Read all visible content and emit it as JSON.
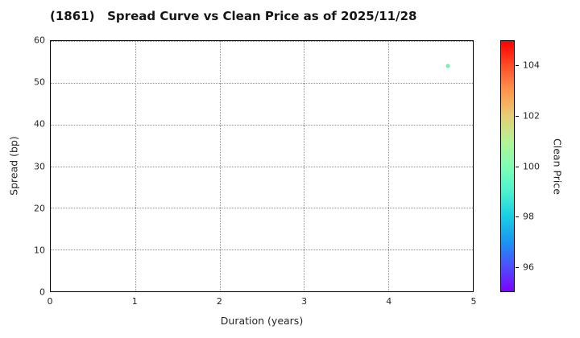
{
  "title": "(1861)   Spread Curve vs Clean Price as of 2025/11/28",
  "chart_data": {
    "type": "scatter",
    "title": "(1861)   Spread Curve vs Clean Price as of 2025/11/28",
    "xlabel": "Duration (years)",
    "ylabel": "Spread (bp)",
    "xlim": [
      0,
      5
    ],
    "ylim": [
      0,
      60
    ],
    "x_ticks": [
      0,
      1,
      2,
      3,
      4,
      5
    ],
    "y_ticks": [
      0,
      10,
      20,
      30,
      40,
      50,
      60
    ],
    "x_grid": [
      1,
      2,
      3,
      4
    ],
    "y_grid": [
      10,
      20,
      30,
      40,
      50,
      60
    ],
    "grid_style": "dotted",
    "legend": "none",
    "points": [
      {
        "x": 4.7,
        "y": 54,
        "clean_price": 100.3,
        "color": "#72F1A6"
      }
    ],
    "colorbar": {
      "label": "Clean Price",
      "min": 95,
      "max": 105,
      "ticks": [
        96,
        98,
        100,
        102,
        104
      ],
      "colormap": "rainbow",
      "stops": [
        {
          "value": 95,
          "color": "#8000FF"
        },
        {
          "value": 96,
          "color": "#4D4FFC"
        },
        {
          "value": 97,
          "color": "#1A96F3"
        },
        {
          "value": 98,
          "color": "#1ACEE3"
        },
        {
          "value": 99,
          "color": "#4DF3CE"
        },
        {
          "value": 100,
          "color": "#80FFB4"
        },
        {
          "value": 101,
          "color": "#B3F396"
        },
        {
          "value": 102,
          "color": "#E6CE74"
        },
        {
          "value": 103,
          "color": "#FF964F"
        },
        {
          "value": 104,
          "color": "#FF4F28"
        },
        {
          "value": 105,
          "color": "#FF0000"
        }
      ]
    }
  }
}
